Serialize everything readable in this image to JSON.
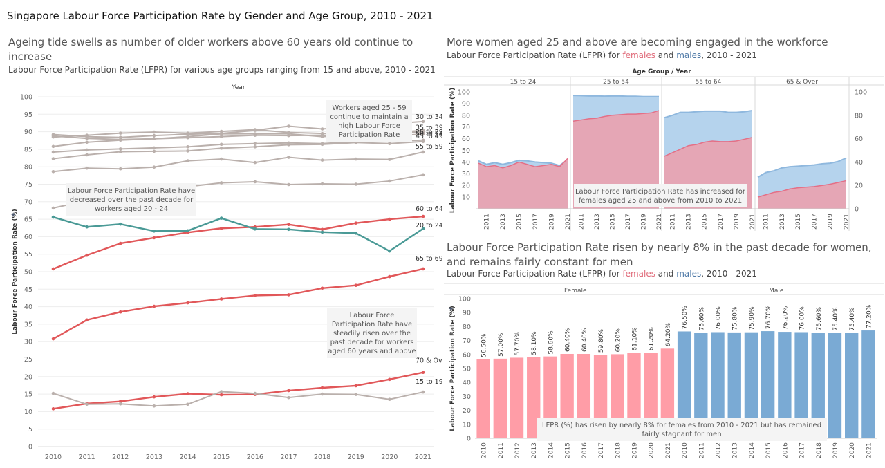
{
  "dashboard_title": "Singapore Labour Force Participation Rate by Gender and Age Group, 2010 - 2021",
  "colors": {
    "gray_line": "#bab0ac",
    "red_line": "#e15759",
    "teal_line": "#4a9a96",
    "female_fill": "#e5a6b5",
    "female_line": "#e46f86",
    "male_fill": "#b5d3ed",
    "male_line": "#8fb8de",
    "female_bar": "#ff9da7",
    "male_bar": "#7aaad4"
  },
  "left_panel": {
    "title": "Ageing tide swells as number of older workers above 60 years old continue to increase",
    "subtitle": "Labour Force Participation Rate (LFPR)  for various age groups ranging from 15 and above, 2010 - 2021",
    "annotations": {
      "workers_25_59": "Workers aged 25 - 59 continue to maintain a high Labour Force Participation Rate",
      "workers_20_24": "Labour Force Participation Rate have decreased over the past decade for workers aged 20 - 24",
      "workers_60_up": "Labour Force Participation Rate have steadily risen over the past decade for workers aged 60 years and above"
    }
  },
  "top_right_panel": {
    "title": "More women aged 25 and above are becoming engaged in the workforce",
    "subtitle_pre": "Labour Force Participation Rate (LFPR)  for ",
    "subtitle_female": "females",
    "subtitle_and": " and ",
    "subtitle_male": "males",
    "subtitle_post": ", 2010 - 2021",
    "annotation": "Labour Force Participation Rate has increased for females aged 25 and above from 2010 to 2021"
  },
  "bottom_right_panel": {
    "title": "Labour Force Participation Rate risen by nearly 8% in the past decade for women, and remains fairly constant for men",
    "subtitle_pre": "Labour Force Participation Rate (LFPR)  for ",
    "subtitle_female": "females",
    "subtitle_and": " and ",
    "subtitle_male": "males",
    "subtitle_post": ", 2010 - 2021",
    "annotation": "LFPR (%) has risen by nearly 8% for females from 2010 - 2021 but has remained fairly stagnant for men"
  },
  "chart_data": [
    {
      "type": "line",
      "title": "Ageing tide swells as number of older workers above 60 years old continue to increase",
      "xlabel": "Year",
      "ylabel": "Labour Force Participation Rate (%)",
      "x": [
        2010,
        2011,
        2012,
        2013,
        2014,
        2015,
        2016,
        2017,
        2018,
        2019,
        2020,
        2021
      ],
      "ylim": [
        0,
        100
      ],
      "yticks": [
        0,
        5,
        10,
        15,
        20,
        25,
        30,
        35,
        40,
        45,
        50,
        55,
        60,
        65,
        70,
        75,
        80,
        85,
        90,
        95,
        100
      ],
      "grid": true,
      "series": [
        {
          "name": "30 to 34",
          "color": "gray",
          "values": [
            89.2,
            88.6,
            88.4,
            88.9,
            89.3,
            89.5,
            90.4,
            91.6,
            90.8,
            91.5,
            92.3,
            92.9
          ]
        },
        {
          "name": "35 to 39",
          "color": "gray",
          "values": [
            88.8,
            88.1,
            87.8,
            88.0,
            88.6,
            89.4,
            89.4,
            89.4,
            88.6,
            89.2,
            89.7,
            90.4
          ]
        },
        {
          "name": "25 to 29",
          "color": "gray",
          "values": [
            88.5,
            89.0,
            89.6,
            89.9,
            89.6,
            90.1,
            90.6,
            89.8,
            89.5,
            89.7,
            89.6,
            89.9
          ]
        },
        {
          "name": "45 to 49",
          "color": "gray",
          "values": [
            85.8,
            87.0,
            87.6,
            88.0,
            88.3,
            88.6,
            89.0,
            88.9,
            89.0,
            88.8,
            88.8,
            89.3
          ]
        },
        {
          "name": "50 to 54",
          "color": "gray",
          "values": [
            84.2,
            84.8,
            85.1,
            85.4,
            85.7,
            86.4,
            86.6,
            86.8,
            86.6,
            87.2,
            87.3,
            87.6
          ]
        },
        {
          "name": "",
          "color": "gray",
          "values": [
            82.3,
            83.4,
            84.3,
            84.4,
            84.5,
            85.3,
            85.7,
            86.3,
            86.4,
            86.9,
            86.6,
            87.2
          ]
        },
        {
          "name": "55 to 59",
          "color": "gray",
          "values": [
            78.6,
            79.6,
            79.4,
            79.9,
            81.7,
            82.2,
            81.2,
            82.7,
            81.9,
            82.2,
            82.1,
            84.2
          ]
        },
        {
          "name": "",
          "color": "gray",
          "values": [
            68.2,
            70.3,
            72.4,
            73.5,
            74.3,
            75.4,
            75.7,
            74.9,
            75.1,
            75.0,
            75.9,
            77.7
          ]
        },
        {
          "name": "60 to 64",
          "color": "red",
          "values": [
            50.8,
            54.7,
            58.1,
            59.7,
            61.2,
            62.4,
            62.8,
            63.5,
            62.1,
            63.9,
            65.0,
            65.8
          ]
        },
        {
          "name": "20 to 24",
          "color": "teal",
          "values": [
            65.6,
            62.8,
            63.6,
            61.6,
            61.7,
            65.3,
            62.2,
            62.1,
            61.3,
            61.0,
            55.9,
            62.3
          ]
        },
        {
          "name": "65 to 69",
          "color": "red",
          "values": [
            30.8,
            36.2,
            38.5,
            40.1,
            41.1,
            42.2,
            43.2,
            43.4,
            45.3,
            46.1,
            48.6,
            50.8
          ]
        },
        {
          "name": "70 & Over",
          "color": "red",
          "values": [
            10.8,
            12.3,
            12.9,
            14.2,
            15.1,
            14.8,
            14.9,
            16.0,
            16.8,
            17.4,
            19.2,
            21.2
          ]
        },
        {
          "name": "15 to 19",
          "color": "gray",
          "values": [
            15.2,
            12.1,
            12.2,
            11.6,
            12.1,
            15.7,
            15.2,
            14.0,
            15.0,
            14.9,
            13.5,
            15.6
          ]
        }
      ]
    },
    {
      "type": "area",
      "title": "More women aged 25 and above are becoming engaged in the workforce",
      "xlabel": "Age Group  /  Year",
      "ylabel": "Labour Force Participation Rate (%)",
      "ylim": [
        0,
        100
      ],
      "yticks_left": [
        10,
        20,
        30,
        40,
        50,
        60,
        70,
        80,
        90,
        100
      ],
      "yticks_right": [
        0,
        20,
        40,
        60,
        80,
        100
      ],
      "x": [
        2010,
        2011,
        2012,
        2013,
        2014,
        2015,
        2016,
        2017,
        2018,
        2019,
        2020,
        2021
      ],
      "x_tick_labels": [
        "2011",
        "2013",
        "2015",
        "2017",
        "2019",
        "2021"
      ],
      "facets": [
        {
          "name": "15 to 24",
          "female": [
            39.0,
            36.0,
            37.0,
            35.0,
            37.0,
            40.0,
            38.0,
            36.0,
            37.0,
            38.0,
            36.0,
            43.0
          ],
          "male": [
            41.0,
            38.0,
            39.5,
            38.0,
            39.5,
            41.5,
            41.0,
            40.0,
            39.5,
            39.0,
            37.0,
            42.0
          ]
        },
        {
          "name": "25 to 54",
          "female": [
            75.0,
            76.0,
            77.0,
            77.5,
            79.0,
            80.0,
            80.5,
            81.0,
            81.0,
            81.5,
            82.0,
            84.0
          ],
          "male": [
            97.0,
            96.8,
            96.5,
            96.6,
            96.4,
            96.5,
            96.5,
            96.3,
            96.3,
            96.0,
            96.0,
            96.0
          ]
        },
        {
          "name": "55 to 64",
          "female": [
            45.0,
            48.0,
            51.0,
            54.0,
            55.0,
            57.0,
            58.0,
            57.5,
            57.5,
            58.0,
            59.5,
            61.0
          ],
          "male": [
            78.0,
            80.0,
            82.5,
            82.5,
            83.0,
            83.5,
            83.5,
            83.5,
            82.5,
            82.5,
            83.0,
            84.0
          ]
        },
        {
          "name": "65 & Over",
          "female": [
            10.0,
            12.0,
            14.0,
            15.0,
            17.0,
            18.0,
            18.5,
            19.0,
            20.0,
            21.0,
            22.5,
            24.0
          ],
          "male": [
            27.0,
            31.0,
            32.5,
            35.0,
            36.0,
            36.5,
            37.0,
            37.5,
            38.5,
            39.0,
            40.5,
            43.5
          ]
        }
      ],
      "grid": true
    },
    {
      "type": "bar",
      "title": "Labour Force Participation Rate risen by nearly 8% in the past decade for women, and remains fairly constant for men",
      "ylabel": "Labour Force Participation Rate (%)",
      "ylim": [
        0,
        100
      ],
      "yticks": [
        0,
        10,
        20,
        30,
        40,
        50,
        60,
        70,
        80,
        90,
        100
      ],
      "categories": [
        "2010",
        "2011",
        "2012",
        "2013",
        "2014",
        "2015",
        "2016",
        "2017",
        "2018",
        "2019",
        "2020",
        "2021"
      ],
      "series": [
        {
          "name": "Female",
          "values": [
            56.5,
            57.0,
            57.7,
            58.1,
            58.6,
            60.4,
            60.4,
            59.8,
            60.2,
            61.1,
            61.2,
            64.2
          ],
          "labels": [
            "56.50%",
            "57.00%",
            "57.70%",
            "58.10%",
            "58.60%",
            "60.40%",
            "60.40%",
            "59.80%",
            "60.20%",
            "61.10%",
            "61.20%",
            "64.20%"
          ]
        },
        {
          "name": "Male",
          "values": [
            76.5,
            75.6,
            76.0,
            75.8,
            75.9,
            76.7,
            76.2,
            76.0,
            75.6,
            75.4,
            75.4,
            77.2
          ],
          "labels": [
            "76.50%",
            "75.60%",
            "76.00%",
            "75.80%",
            "75.90%",
            "76.70%",
            "76.20%",
            "76.00%",
            "75.60%",
            "75.40%",
            "75.40%",
            "77.20%"
          ]
        }
      ],
      "grid": true
    }
  ]
}
